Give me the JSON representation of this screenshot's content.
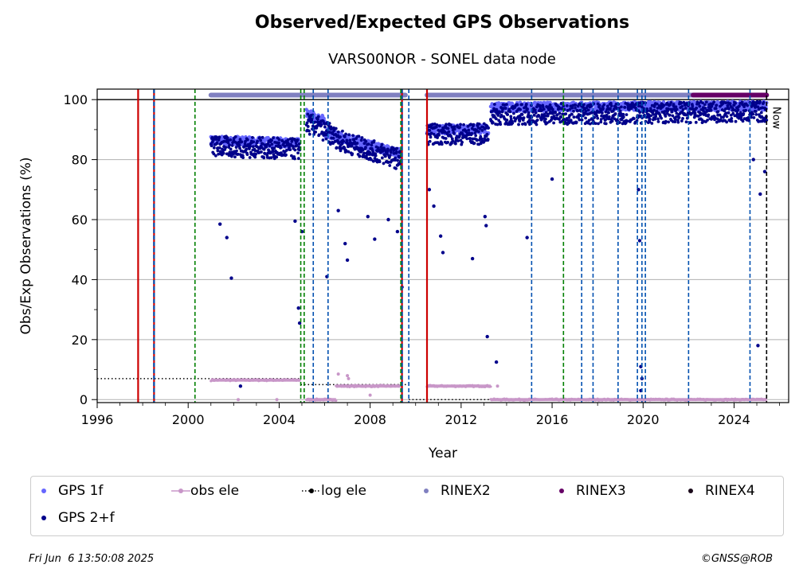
{
  "header": {
    "title": "Observed/Expected GPS Observations",
    "subtitle": "VARS00NOR - SONEL data node"
  },
  "footer": {
    "timestamp": "Fri Jun  6 13:50:08 2025",
    "credit": "©GNSS@ROB"
  },
  "chart_data": {
    "type": "scatter",
    "xlabel": "Year",
    "ylabel": "Obs/Exp Observations (%)",
    "xlim": [
      1996,
      2026.4
    ],
    "ylim": [
      -1,
      103.5
    ],
    "xticks": [
      1996,
      2000,
      2004,
      2008,
      2012,
      2016,
      2020,
      2024
    ],
    "yticks": [
      0,
      20,
      40,
      60,
      80,
      100
    ],
    "grid": "horizontal",
    "now_label": "Now",
    "now_year": 2025.43,
    "colors": {
      "gps_1f": "#6666ff",
      "gps_2f": "#00008b",
      "obs_ele": "#c896c8",
      "log_ele": "#000000",
      "rinex2": "#8080c0",
      "rinex3": "#660066",
      "rinex4": "#1a0a1a",
      "red_line": "#cc0000",
      "green_line": "#008000",
      "blue_line": "#0050b0"
    },
    "legend": [
      {
        "label": "GPS 1f",
        "key": "gps_1f",
        "style": "dot"
      },
      {
        "label": "obs ele",
        "key": "obs_ele",
        "style": "dotline"
      },
      {
        "label": "log ele",
        "key": "log_ele",
        "style": "dotted"
      },
      {
        "label": "RINEX2",
        "key": "rinex2",
        "style": "dot"
      },
      {
        "label": "RINEX3",
        "key": "rinex3",
        "style": "dot"
      },
      {
        "label": "RINEX4",
        "key": "rinex4",
        "style": "dot"
      },
      {
        "label": "GPS 2+f",
        "key": "gps_2f",
        "style": "dot"
      }
    ],
    "vertical_lines": {
      "red": [
        1997.8,
        2010.5
      ],
      "green": [
        2000.3,
        2004.95,
        2005.1,
        2009.35,
        2016.5
      ],
      "blue": [
        1998.5,
        2005.5,
        2006.15,
        2009.7,
        2015.1,
        2017.3,
        2017.8,
        2018.9,
        2019.75,
        2019.95,
        2020.1,
        2022.0,
        2024.7
      ],
      "red_blue": [
        1998.5,
        2009.4
      ]
    },
    "rinex_bars": [
      {
        "series": "RINEX2",
        "x": [
          2001.0,
          2009.55
        ],
        "y": 101.5
      },
      {
        "series": "RINEX2",
        "x": [
          2010.5,
          2022.2
        ],
        "y": 101.5
      },
      {
        "series": "RINEX3",
        "x": [
          2022.2,
          2025.43
        ],
        "y": 101.5
      }
    ],
    "gps_2f_segments": [
      {
        "x": [
          2001.0,
          2004.9
        ],
        "y": [
          84.5,
          83.5
        ]
      },
      {
        "x": [
          2005.2,
          2005.7
        ],
        "y": [
          92,
          91
        ]
      },
      {
        "x": [
          2005.7,
          2006.8
        ],
        "y": [
          91,
          86
        ]
      },
      {
        "x": [
          2006.8,
          2009.35
        ],
        "y": [
          86,
          80
        ]
      },
      {
        "x": [
          2010.5,
          2013.2
        ],
        "y": [
          88.5,
          88.5
        ]
      },
      {
        "x": [
          2013.3,
          2025.43
        ],
        "y": [
          95,
          96
        ]
      }
    ],
    "gps_1f_segments": [
      {
        "x": [
          2001.0,
          2004.9
        ],
        "y": [
          86.5,
          85.5
        ]
      },
      {
        "x": [
          2005.2,
          2006.0
        ],
        "y": [
          95.5,
          93
        ]
      },
      {
        "x": [
          2006.0,
          2009.35
        ],
        "y": [
          89,
          82
        ]
      },
      {
        "x": [
          2010.5,
          2013.2
        ],
        "y": [
          90,
          90
        ]
      },
      {
        "x": [
          2013.3,
          2025.43
        ],
        "y": [
          97.5,
          98
        ]
      }
    ],
    "gps_2f_outliers": [
      {
        "x": 2001.9,
        "y": 40.5
      },
      {
        "x": 2001.7,
        "y": 54
      },
      {
        "x": 2001.4,
        "y": 58.5
      },
      {
        "x": 2002.3,
        "y": 4.5
      },
      {
        "x": 2004.7,
        "y": 59.5
      },
      {
        "x": 2004.85,
        "y": 30.5
      },
      {
        "x": 2004.9,
        "y": 25.5
      },
      {
        "x": 2005.0,
        "y": 56
      },
      {
        "x": 2006.1,
        "y": 41
      },
      {
        "x": 2006.6,
        "y": 63
      },
      {
        "x": 2006.9,
        "y": 52
      },
      {
        "x": 2007.0,
        "y": 46.5
      },
      {
        "x": 2007.9,
        "y": 61
      },
      {
        "x": 2008.2,
        "y": 53.5
      },
      {
        "x": 2008.8,
        "y": 60
      },
      {
        "x": 2009.2,
        "y": 56
      },
      {
        "x": 2009.4,
        "y": 37.5
      },
      {
        "x": 2010.6,
        "y": 70
      },
      {
        "x": 2010.8,
        "y": 64.5
      },
      {
        "x": 2011.1,
        "y": 54.5
      },
      {
        "x": 2011.2,
        "y": 49
      },
      {
        "x": 2012.5,
        "y": 47
      },
      {
        "x": 2013.05,
        "y": 61
      },
      {
        "x": 2013.1,
        "y": 58
      },
      {
        "x": 2013.15,
        "y": 21
      },
      {
        "x": 2013.55,
        "y": 12.5
      },
      {
        "x": 2014.9,
        "y": 54
      },
      {
        "x": 2016.0,
        "y": 73.5
      },
      {
        "x": 2019.8,
        "y": 70
      },
      {
        "x": 2019.85,
        "y": 53
      },
      {
        "x": 2019.9,
        "y": 11
      },
      {
        "x": 2019.95,
        "y": 7
      },
      {
        "x": 2019.9,
        "y": 3
      },
      {
        "x": 2024.85,
        "y": 80
      },
      {
        "x": 2025.05,
        "y": 18
      },
      {
        "x": 2025.15,
        "y": 68.5
      },
      {
        "x": 2025.35,
        "y": 76
      }
    ],
    "obs_ele_segments": [
      {
        "x": [
          2001.0,
          2004.9
        ],
        "y": [
          6.5,
          6.5
        ]
      },
      {
        "x": [
          2005.2,
          2006.5
        ],
        "y": [
          0,
          0
        ]
      },
      {
        "x": [
          2006.5,
          2009.35
        ],
        "y": [
          4.5,
          4.5
        ]
      },
      {
        "x": [
          2010.5,
          2013.3
        ],
        "y": [
          4.5,
          4.5
        ]
      },
      {
        "x": [
          2013.3,
          2025.43
        ],
        "y": [
          0,
          0
        ]
      }
    ],
    "obs_ele_outliers": [
      {
        "x": 2002.2,
        "y": 0
      },
      {
        "x": 2003.9,
        "y": 0
      },
      {
        "x": 2006.6,
        "y": 8.5
      },
      {
        "x": 2007.0,
        "y": 8
      },
      {
        "x": 2007.05,
        "y": 7
      },
      {
        "x": 2008.0,
        "y": 1.5
      },
      {
        "x": 2013.6,
        "y": 4.5
      }
    ],
    "log_ele_segments": [
      {
        "x": [
          1996,
          2004.95
        ],
        "y": [
          7,
          7
        ]
      },
      {
        "x": [
          2004.95,
          2009.7
        ],
        "y": [
          5,
          5
        ]
      },
      {
        "x": [
          2009.7,
          2025.43
        ],
        "y": [
          0,
          0
        ]
      }
    ]
  }
}
